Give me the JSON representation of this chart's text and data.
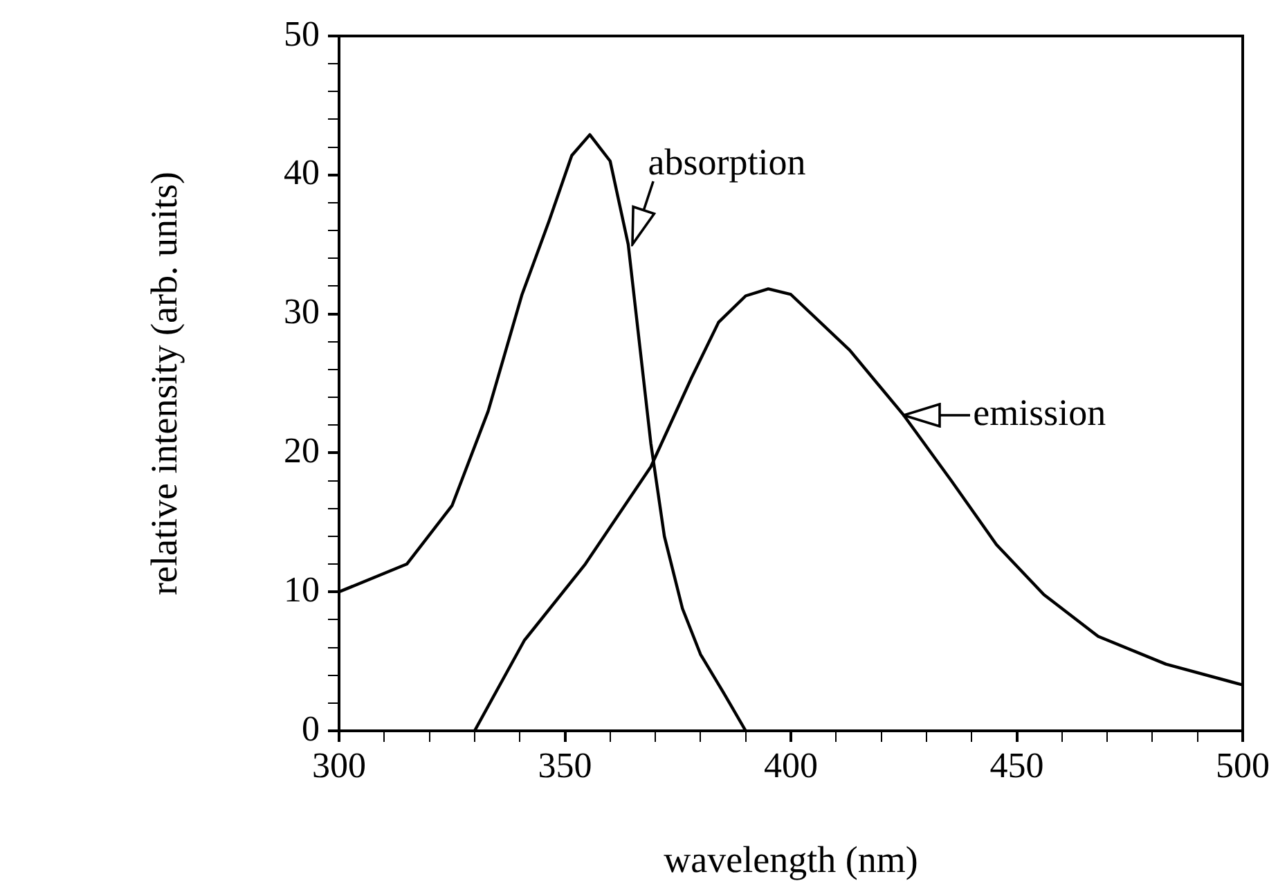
{
  "chart_data": {
    "type": "line",
    "xlabel": "wavelength (nm)",
    "ylabel": "relative intensity (arb. units)",
    "xlim": [
      300,
      500
    ],
    "ylim": [
      0,
      50
    ],
    "xticks": [
      300,
      {
        "value": 310,
        "label": null
      },
      {
        "value": 320,
        "label": null
      },
      {
        "value": 330,
        "label": null
      },
      {
        "value": 340,
        "label": null
      },
      350,
      {
        "value": 360,
        "label": null
      },
      {
        "value": 370,
        "label": null
      },
      {
        "value": 380,
        "label": null
      },
      {
        "value": 390,
        "label": null
      },
      400,
      {
        "value": 410,
        "label": null
      },
      {
        "value": 420,
        "label": null
      },
      {
        "value": 430,
        "label": null
      },
      {
        "value": 440,
        "label": null
      },
      450,
      {
        "value": 460,
        "label": null
      },
      {
        "value": 470,
        "label": null
      },
      {
        "value": 480,
        "label": null
      },
      {
        "value": 490,
        "label": null
      },
      500
    ],
    "yticks": [
      0,
      {
        "value": 2,
        "label": null
      },
      {
        "value": 4,
        "label": null
      },
      {
        "value": 6,
        "label": null
      },
      {
        "value": 8,
        "label": null
      },
      10,
      {
        "value": 12,
        "label": null
      },
      {
        "value": 14,
        "label": null
      },
      {
        "value": 16,
        "label": null
      },
      {
        "value": 18,
        "label": null
      },
      20,
      {
        "value": 22,
        "label": null
      },
      {
        "value": 24,
        "label": null
      },
      {
        "value": 26,
        "label": null
      },
      {
        "value": 28,
        "label": null
      },
      30,
      {
        "value": 32,
        "label": null
      },
      {
        "value": 34,
        "label": null
      },
      {
        "value": 36,
        "label": null
      },
      {
        "value": 38,
        "label": null
      },
      40,
      {
        "value": 42,
        "label": null
      },
      {
        "value": 44,
        "label": null
      },
      {
        "value": 46,
        "label": null
      },
      {
        "value": 48,
        "label": null
      },
      50
    ],
    "grid": false,
    "legend": false,
    "marker": "none",
    "line_style": "solid",
    "series": [
      {
        "color": "#000000",
        "x": [
          300,
          315,
          325,
          333,
          340.5,
          346.5,
          351.5,
          355.5,
          360,
          364,
          369,
          372,
          376,
          380,
          385,
          390
        ],
        "values": [
          10,
          12,
          16.2,
          23,
          31.4,
          36.7,
          41.4,
          42.9,
          41,
          35,
          20.7,
          14,
          8.8,
          5.5,
          2.8,
          0
        ]
      },
      {
        "color": "#000000",
        "x": [
          330,
          341,
          354.5,
          369,
          378,
          384,
          390,
          395,
          400,
          413,
          425,
          435.5,
          445.5,
          456,
          468,
          483,
          500
        ],
        "values": [
          0,
          6.5,
          12,
          19,
          25.4,
          29.4,
          31.3,
          31.8,
          31.4,
          27.4,
          22.7,
          18,
          13.4,
          9.8,
          6.8,
          4.8,
          3.3
        ]
      }
    ],
    "annotations": [
      {
        "text": "absorption",
        "x": 365,
        "y": 35
      },
      {
        "text": "emission",
        "x": 425,
        "y": 22.7
      }
    ]
  }
}
